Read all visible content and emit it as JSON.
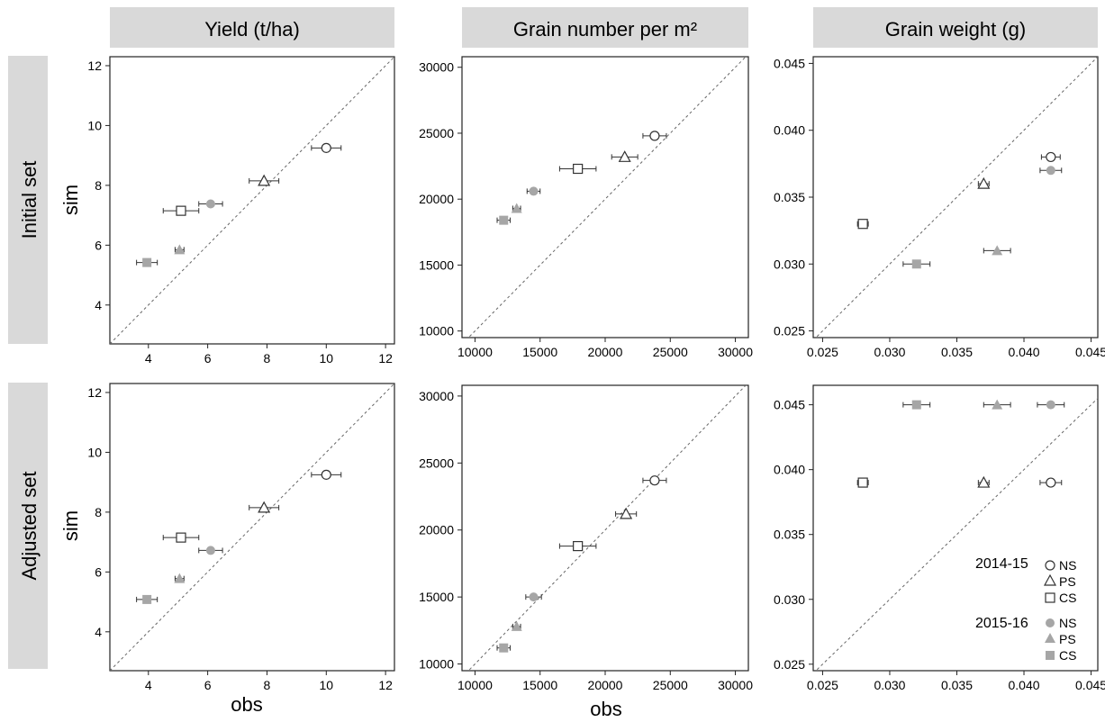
{
  "figure": {
    "column_headers": [
      "Yield (t/ha)",
      "Grain number per m²",
      "Grain weight (g)"
    ],
    "row_headers": [
      "Initial set",
      "Adjusted set"
    ],
    "y_label": "sim",
    "x_label": "obs"
  },
  "legend": {
    "groups": [
      {
        "season": "2014-15",
        "items": [
          {
            "marker": "open-circle",
            "label": "NS"
          },
          {
            "marker": "open-triangle",
            "label": "PS"
          },
          {
            "marker": "open-square",
            "label": "CS"
          }
        ]
      },
      {
        "season": "2015-16",
        "items": [
          {
            "marker": "filled-circle",
            "label": "NS"
          },
          {
            "marker": "filled-triangle",
            "label": "PS"
          },
          {
            "marker": "filled-square",
            "label": "CS"
          }
        ]
      }
    ]
  },
  "colors": {
    "open_marker": "#333333",
    "filled_marker": "#a6a6a6",
    "header_bg": "#d9d9d9",
    "reference_line": "#666666"
  },
  "chart_data": [
    {
      "type": "scatter",
      "row": "Initial set",
      "variable": "Yield (t/ha)",
      "xlim": [
        2.7,
        12.3
      ],
      "ylim": [
        2.7,
        12.3
      ],
      "xticks": [
        "4",
        "6",
        "8",
        "10",
        "12"
      ],
      "yticks": [
        "4",
        "6",
        "8",
        "10",
        "12"
      ],
      "reference_line": "1:1",
      "points": [
        {
          "season": "2014-15",
          "treatment": "NS",
          "obs": 10.0,
          "sim": 9.25,
          "obs_err": 0.5
        },
        {
          "season": "2014-15",
          "treatment": "PS",
          "obs": 7.9,
          "sim": 8.15,
          "obs_err": 0.5
        },
        {
          "season": "2014-15",
          "treatment": "CS",
          "obs": 5.1,
          "sim": 7.15,
          "obs_err": 0.6
        },
        {
          "season": "2015-16",
          "treatment": "NS",
          "obs": 6.1,
          "sim": 7.38,
          "obs_err": 0.4
        },
        {
          "season": "2015-16",
          "treatment": "PS",
          "obs": 5.05,
          "sim": 5.85,
          "obs_err": 0.15
        },
        {
          "season": "2015-16",
          "treatment": "CS",
          "obs": 3.95,
          "sim": 5.42,
          "obs_err": 0.35
        }
      ]
    },
    {
      "type": "scatter",
      "row": "Initial set",
      "variable": "Grain number per m²",
      "xlim": [
        9000,
        31000
      ],
      "ylim": [
        9500,
        30800
      ],
      "xticks": [
        "10000",
        "15000",
        "20000",
        "25000",
        "30000"
      ],
      "yticks": [
        "10000",
        "15000",
        "20000",
        "25000",
        "30000"
      ],
      "reference_line": "1:1",
      "points": [
        {
          "season": "2014-15",
          "treatment": "NS",
          "obs": 23800,
          "sim": 24800,
          "obs_err": 900
        },
        {
          "season": "2014-15",
          "treatment": "PS",
          "obs": 21500,
          "sim": 23200,
          "obs_err": 1000
        },
        {
          "season": "2014-15",
          "treatment": "CS",
          "obs": 17900,
          "sim": 22300,
          "obs_err": 1400
        },
        {
          "season": "2015-16",
          "treatment": "NS",
          "obs": 14500,
          "sim": 20600,
          "obs_err": 500
        },
        {
          "season": "2015-16",
          "treatment": "PS",
          "obs": 13200,
          "sim": 19300,
          "obs_err": 300
        },
        {
          "season": "2015-16",
          "treatment": "CS",
          "obs": 12200,
          "sim": 18400,
          "obs_err": 500
        }
      ]
    },
    {
      "type": "scatter",
      "row": "Initial set",
      "variable": "Grain weight (g)",
      "xlim": [
        0.0243,
        0.0455
      ],
      "ylim": [
        0.0245,
        0.0455
      ],
      "xticks": [
        "0.025",
        "0.030",
        "0.035",
        "0.040",
        "0.045"
      ],
      "yticks": [
        "0.025",
        "0.030",
        "0.035",
        "0.040",
        "0.045"
      ],
      "reference_line": "1:1",
      "points": [
        {
          "season": "2014-15",
          "treatment": "NS",
          "obs": 0.042,
          "sim": 0.038,
          "obs_err": 0.0007
        },
        {
          "season": "2014-15",
          "treatment": "PS",
          "obs": 0.037,
          "sim": 0.036,
          "obs_err": 0.0004
        },
        {
          "season": "2014-15",
          "treatment": "CS",
          "obs": 0.028,
          "sim": 0.033,
          "obs_err": 0.0004
        },
        {
          "season": "2015-16",
          "treatment": "NS",
          "obs": 0.042,
          "sim": 0.037,
          "obs_err": 0.0008
        },
        {
          "season": "2015-16",
          "treatment": "PS",
          "obs": 0.038,
          "sim": 0.031,
          "obs_err": 0.001
        },
        {
          "season": "2015-16",
          "treatment": "CS",
          "obs": 0.032,
          "sim": 0.03,
          "obs_err": 0.001
        }
      ]
    },
    {
      "type": "scatter",
      "row": "Adjusted set",
      "variable": "Yield (t/ha)",
      "xlim": [
        2.7,
        12.3
      ],
      "ylim": [
        2.7,
        12.3
      ],
      "xticks": [
        "4",
        "6",
        "8",
        "10",
        "12"
      ],
      "yticks": [
        "4",
        "6",
        "8",
        "10",
        "12"
      ],
      "reference_line": "1:1",
      "points": [
        {
          "season": "2014-15",
          "treatment": "NS",
          "obs": 10.0,
          "sim": 9.25,
          "obs_err": 0.5
        },
        {
          "season": "2014-15",
          "treatment": "PS",
          "obs": 7.9,
          "sim": 8.15,
          "obs_err": 0.5
        },
        {
          "season": "2014-15",
          "treatment": "CS",
          "obs": 5.1,
          "sim": 7.15,
          "obs_err": 0.6
        },
        {
          "season": "2015-16",
          "treatment": "NS",
          "obs": 6.1,
          "sim": 6.72,
          "obs_err": 0.4
        },
        {
          "season": "2015-16",
          "treatment": "PS",
          "obs": 5.05,
          "sim": 5.78,
          "obs_err": 0.15
        },
        {
          "season": "2015-16",
          "treatment": "CS",
          "obs": 3.95,
          "sim": 5.08,
          "obs_err": 0.35
        }
      ]
    },
    {
      "type": "scatter",
      "row": "Adjusted set",
      "variable": "Grain number per m²",
      "xlim": [
        9000,
        31000
      ],
      "ylim": [
        9500,
        30800
      ],
      "xticks": [
        "10000",
        "15000",
        "20000",
        "25000",
        "30000"
      ],
      "yticks": [
        "10000",
        "15000",
        "20000",
        "25000",
        "30000"
      ],
      "reference_line": "1:1",
      "points": [
        {
          "season": "2014-15",
          "treatment": "NS",
          "obs": 23800,
          "sim": 23700,
          "obs_err": 900
        },
        {
          "season": "2014-15",
          "treatment": "PS",
          "obs": 21600,
          "sim": 21200,
          "obs_err": 800
        },
        {
          "season": "2014-15",
          "treatment": "CS",
          "obs": 17900,
          "sim": 18800,
          "obs_err": 1400
        },
        {
          "season": "2015-16",
          "treatment": "NS",
          "obs": 14500,
          "sim": 15000,
          "obs_err": 600
        },
        {
          "season": "2015-16",
          "treatment": "PS",
          "obs": 13200,
          "sim": 12800,
          "obs_err": 300
        },
        {
          "season": "2015-16",
          "treatment": "CS",
          "obs": 12200,
          "sim": 11200,
          "obs_err": 500
        }
      ]
    },
    {
      "type": "scatter",
      "row": "Adjusted set",
      "variable": "Grain weight (g)",
      "xlim": [
        0.0243,
        0.0455
      ],
      "ylim": [
        0.0245,
        0.0465
      ],
      "xticks": [
        "0.025",
        "0.030",
        "0.035",
        "0.040",
        "0.045"
      ],
      "yticks": [
        "0.025",
        "0.030",
        "0.035",
        "0.040",
        "0.045"
      ],
      "reference_line": "1:1",
      "points": [
        {
          "season": "2014-15",
          "treatment": "NS",
          "obs": 0.042,
          "sim": 0.039,
          "obs_err": 0.0008
        },
        {
          "season": "2014-15",
          "treatment": "PS",
          "obs": 0.037,
          "sim": 0.039,
          "obs_err": 0.0004
        },
        {
          "season": "2014-15",
          "treatment": "CS",
          "obs": 0.028,
          "sim": 0.039,
          "obs_err": 0.0004
        },
        {
          "season": "2015-16",
          "treatment": "NS",
          "obs": 0.042,
          "sim": 0.045,
          "obs_err": 0.001
        },
        {
          "season": "2015-16",
          "treatment": "PS",
          "obs": 0.038,
          "sim": 0.045,
          "obs_err": 0.001
        },
        {
          "season": "2015-16",
          "treatment": "CS",
          "obs": 0.032,
          "sim": 0.045,
          "obs_err": 0.001
        }
      ]
    }
  ]
}
